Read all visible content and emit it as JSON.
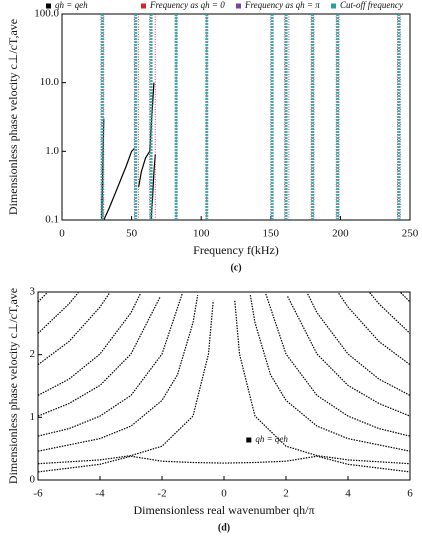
{
  "chart_data": [
    {
      "type": "line",
      "panel": "(c)",
      "x_label": "Frequency  f(kHz)",
      "y_label": "Dimensionless phase velocity  c⊥/cT,ave",
      "xlim": [
        0,
        250
      ],
      "xticks": [
        0,
        50,
        100,
        150,
        200,
        250
      ],
      "ylim": [
        0.1,
        100
      ],
      "y_log": true,
      "yticks": [
        0.1,
        {
          "value": 1,
          "label": "1.0"
        },
        {
          "value": 10,
          "label": "10.0"
        },
        {
          "value": 100,
          "label": "100.0"
        }
      ],
      "legend": "top",
      "series": [
        {
          "name": "qh = qeh",
          "color": "#000000",
          "x": [
            28.5,
            29,
            29.5,
            30,
            30,
            30,
            34,
            40,
            46,
            50,
            52,
            52,
            55,
            57,
            60,
            63,
            66,
            66,
            64,
            65,
            66,
            67
          ],
          "values": [
            0.1,
            0.3,
            1,
            3,
            null,
            0.1,
            0.15,
            0.3,
            0.6,
            1.0,
            1.1,
            null,
            0.3,
            0.5,
            0.8,
            1.0,
            10,
            null,
            0.1,
            0.2,
            0.5,
            0.9
          ]
        },
        {
          "name": "Frequency as qh = 0",
          "color": "#d62728",
          "x": [
            30,
            55,
            67,
            104,
            160,
            179,
            199,
            241
          ]
        },
        {
          "name": "Frequency as qh = π",
          "color": "#7b3fa0",
          "x": [
            28,
            52,
            63,
            82,
            150,
            163,
            181,
            197,
            243
          ]
        },
        {
          "name": "Cut-off frequency",
          "color": "#2a9d9d",
          "x": [
            29,
            53,
            64,
            82,
            104,
            151,
            161,
            180,
            198,
            242
          ]
        }
      ]
    },
    {
      "type": "line",
      "panel": "(d)",
      "x_label": "Dimensionless real wavenumber  qh/π",
      "y_label": "Dimensionless phase velocity  c⊥/cT,ave",
      "xlim": [
        -6,
        6
      ],
      "xticks": [
        -6,
        -4,
        -2,
        0,
        2,
        4,
        6
      ],
      "ylim": [
        0,
        3
      ],
      "yticks": [
        0,
        1,
        2,
        3
      ],
      "legend": "lower right",
      "series": [
        {
          "name": "qh = qeh",
          "color": "#000000",
          "x": [
            -6,
            -4,
            -3,
            -2,
            -1,
            -0.5,
            -0.35,
            0,
            0.35,
            0.5,
            1,
            2,
            3,
            4,
            6
          ],
          "values": [
            0.26,
            0.32,
            0.39,
            0.54,
            1.02,
            2.01,
            2.86,
            null,
            2.86,
            2.01,
            1.02,
            0.54,
            0.39,
            0.32,
            0.26
          ]
        },
        {
          "color": "#000000",
          "x": [
            -6,
            -4,
            -3,
            -2,
            -1.5,
            -1,
            -0.85,
            0,
            0.85,
            1,
            1.5,
            2,
            3,
            4,
            6
          ],
          "values": [
            0.46,
            0.66,
            0.86,
            1.27,
            1.68,
            2.51,
            2.95,
            null,
            2.95,
            2.51,
            1.68,
            1.27,
            0.86,
            0.66,
            0.46
          ]
        },
        {
          "color": "#000000",
          "x": [
            -6,
            -5,
            -4,
            -3,
            -2,
            -1.35,
            0,
            1.35,
            2,
            3,
            4,
            5,
            6
          ],
          "values": [
            0.7,
            0.82,
            1.02,
            1.35,
            2.01,
            2.97,
            null,
            2.97,
            2.01,
            1.35,
            1.02,
            0.82,
            0.7
          ]
        },
        {
          "color": "#000000",
          "x": [
            -6,
            -5,
            -4,
            -3,
            -2.05,
            0,
            2.05,
            3,
            4,
            5,
            6
          ],
          "values": [
            1.02,
            1.22,
            1.51,
            2.01,
            2.93,
            null,
            2.93,
            2.01,
            1.51,
            1.22,
            1.02
          ]
        },
        {
          "color": "#000000",
          "x": [
            -6,
            -5,
            -4,
            -3,
            -2.7,
            0,
            2.7,
            3,
            4,
            5,
            6
          ],
          "values": [
            1.35,
            1.61,
            2.01,
            2.67,
            2.97,
            null,
            2.97,
            2.67,
            2.01,
            1.61,
            1.35
          ]
        },
        {
          "color": "#000000",
          "x": [
            -6,
            -5,
            -4,
            -3.7,
            0,
            3.7,
            4,
            5,
            6
          ],
          "values": [
            1.84,
            2.21,
            2.76,
            2.98,
            null,
            2.98,
            2.76,
            2.21,
            1.84
          ]
        },
        {
          "color": "#000000",
          "x": [
            -6,
            -5,
            -4.7,
            0,
            4.7,
            5,
            6
          ],
          "values": [
            2.34,
            2.81,
            2.99,
            null,
            2.99,
            2.81,
            2.34
          ]
        },
        {
          "color": "#000000",
          "x": [
            -6,
            -5.7,
            0,
            5.7,
            6
          ],
          "values": [
            2.84,
            2.99,
            null,
            2.99,
            2.84
          ]
        },
        {
          "color": "#000000",
          "x": [
            -6,
            -4,
            -3,
            -2,
            -1,
            0,
            1,
            2,
            3,
            4,
            6
          ],
          "values": [
            0.13,
            0.25,
            0.38,
            0.3,
            0.28,
            0.27,
            0.28,
            0.3,
            0.38,
            0.25,
            0.13
          ]
        }
      ]
    }
  ]
}
